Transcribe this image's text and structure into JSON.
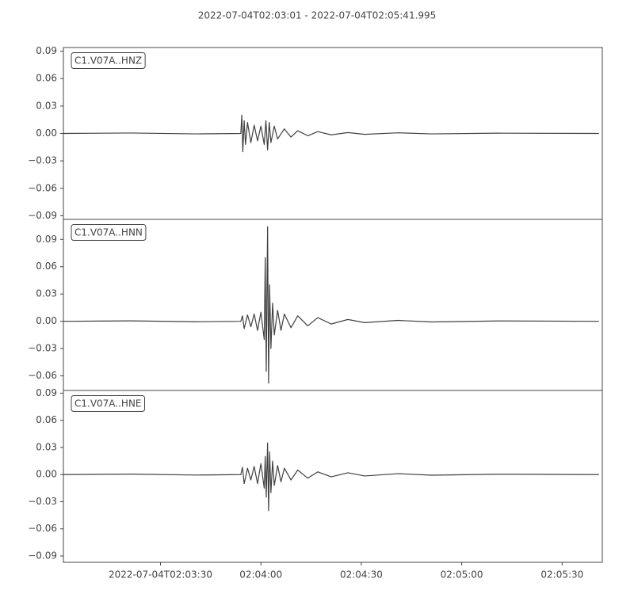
{
  "title": "2022-07-04T02:03:01  -  2022-07-04T02:05:41.995",
  "chart_data": [
    {
      "type": "line",
      "x": [
        0,
        20,
        40,
        53,
        53.3,
        53.6,
        54,
        54.4,
        55,
        56,
        57,
        58,
        59,
        60,
        60.5,
        61,
        61.5,
        62,
        63,
        64,
        66,
        68,
        70,
        73,
        76,
        80,
        85,
        90,
        100,
        110,
        130,
        160
      ],
      "series": [
        {
          "name": "C1.V07A..HNZ",
          "color": "#404040",
          "values": [
            0,
            0.0005,
            -0.0005,
            0,
            0.02,
            -0.02,
            0.014,
            -0.012,
            0.012,
            -0.01,
            0.009,
            -0.008,
            0.008,
            -0.012,
            0.014,
            -0.018,
            0.012,
            -0.01,
            0.008,
            -0.006,
            0.005,
            -0.004,
            0.003,
            -0.0025,
            0.002,
            -0.0015,
            0.001,
            -0.001,
            0.0007,
            -0.0005,
            0.0003,
            0
          ]
        }
      ],
      "xlim": [
        0,
        160.995
      ],
      "ylim": [
        -0.094,
        0.094
      ],
      "yticks": [
        0.09,
        0.06,
        0.03,
        {
          "value": 0,
          "label": "0.00"
        },
        {
          "value": -0.03,
          "label": "−0.03"
        },
        {
          "value": -0.06,
          "label": "−0.06"
        },
        {
          "value": -0.09,
          "label": "−0.09"
        }
      ]
    },
    {
      "type": "line",
      "x": [
        0,
        20,
        40,
        53,
        53.5,
        54,
        55,
        56,
        57,
        58,
        59,
        60,
        60.3,
        60.6,
        61,
        61.3,
        61.6,
        62,
        62.5,
        63,
        64,
        65,
        66,
        68,
        70,
        73,
        76,
        80,
        85,
        90,
        100,
        110,
        130,
        160
      ],
      "series": [
        {
          "name": "C1.V07A..HNN",
          "color": "#404040",
          "values": [
            0,
            0.0005,
            -0.0005,
            0,
            0.006,
            -0.008,
            0.007,
            -0.006,
            0.008,
            -0.01,
            0.01,
            -0.02,
            0.07,
            -0.055,
            0.104,
            -0.068,
            0.04,
            -0.03,
            0.02,
            -0.015,
            0.012,
            -0.01,
            0.008,
            -0.007,
            0.006,
            -0.005,
            0.004,
            -0.003,
            0.002,
            -0.0015,
            0.001,
            -0.0007,
            0.0004,
            0
          ]
        }
      ],
      "xlim": [
        0,
        160.995
      ],
      "ylim": [
        -0.076,
        0.112
      ],
      "yticks": [
        0.09,
        0.06,
        0.03,
        {
          "value": 0,
          "label": "0.00"
        },
        {
          "value": -0.03,
          "label": "−0.03"
        },
        {
          "value": -0.06,
          "label": "−0.06"
        }
      ]
    },
    {
      "type": "line",
      "x": [
        0,
        20,
        40,
        53,
        53.5,
        54,
        55,
        56,
        57,
        58,
        59,
        60,
        60.3,
        60.6,
        61,
        61.3,
        61.6,
        62,
        62.5,
        63,
        64,
        65,
        66,
        68,
        70,
        73,
        76,
        80,
        85,
        90,
        100,
        110,
        130,
        160
      ],
      "series": [
        {
          "name": "C1.V07A..HNE",
          "color": "#404040",
          "values": [
            0,
            0.0005,
            -0.0005,
            0,
            0.008,
            -0.01,
            0.007,
            -0.006,
            0.009,
            -0.01,
            0.012,
            -0.015,
            0.02,
            -0.025,
            0.035,
            -0.04,
            0.025,
            -0.02,
            0.015,
            -0.012,
            0.01,
            -0.008,
            0.007,
            -0.006,
            0.005,
            -0.004,
            0.003,
            -0.0025,
            0.002,
            -0.0015,
            0.001,
            -0.0007,
            0.0004,
            0
          ]
        }
      ],
      "xlim": [
        0,
        160.995
      ],
      "ylim": [
        -0.097,
        0.093
      ],
      "yticks": [
        0.09,
        0.06,
        0.03,
        {
          "value": 0,
          "label": "0.00"
        },
        {
          "value": -0.03,
          "label": "−0.03"
        },
        {
          "value": -0.06,
          "label": "−0.06"
        },
        {
          "value": -0.09,
          "label": "−0.09"
        }
      ],
      "xticks": [
        {
          "value": 29,
          "label": "2022-07-04T02:03:30"
        },
        {
          "value": 59,
          "label": "02:04:00"
        },
        {
          "value": 89,
          "label": "02:04:30"
        },
        {
          "value": 119,
          "label": "02:05:00"
        },
        {
          "value": 149,
          "label": "02:05:30"
        }
      ]
    }
  ]
}
